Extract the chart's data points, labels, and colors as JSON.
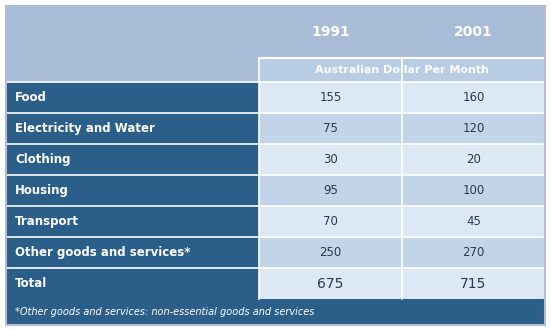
{
  "categories": [
    "Food",
    "Electricity and Water",
    "Clothing",
    "Housing",
    "Transport",
    "Other goods and services*",
    "Total"
  ],
  "values_1991": [
    155,
    75,
    30,
    95,
    70,
    250,
    675
  ],
  "values_2001": [
    160,
    120,
    20,
    100,
    45,
    270,
    715
  ],
  "year1": "1991",
  "year2": "2001",
  "subheader": "Australian Dollar Per Month",
  "footnote": "*Other goods and services: non-essential goods and services",
  "header_bg": "#a8bcd8",
  "subheader_bg": "#a8bcd8",
  "subheader_inner_bg": "#b8cce4",
  "row_label_bg": "#2b5f8a",
  "row_data_bg_even": "#dce9f5",
  "row_data_bg_odd": "#c2d4e8",
  "footnote_bg": "#2b5f8a",
  "label_text_color": "#ffffff",
  "data_text_color": "#2a3a50",
  "year_text_color": "#ffffff",
  "subheader_text_color": "#ffffff",
  "footnote_text_color": "#ffffff",
  "border_color": "#ffffff",
  "outer_border_color": "#b0bfcf"
}
